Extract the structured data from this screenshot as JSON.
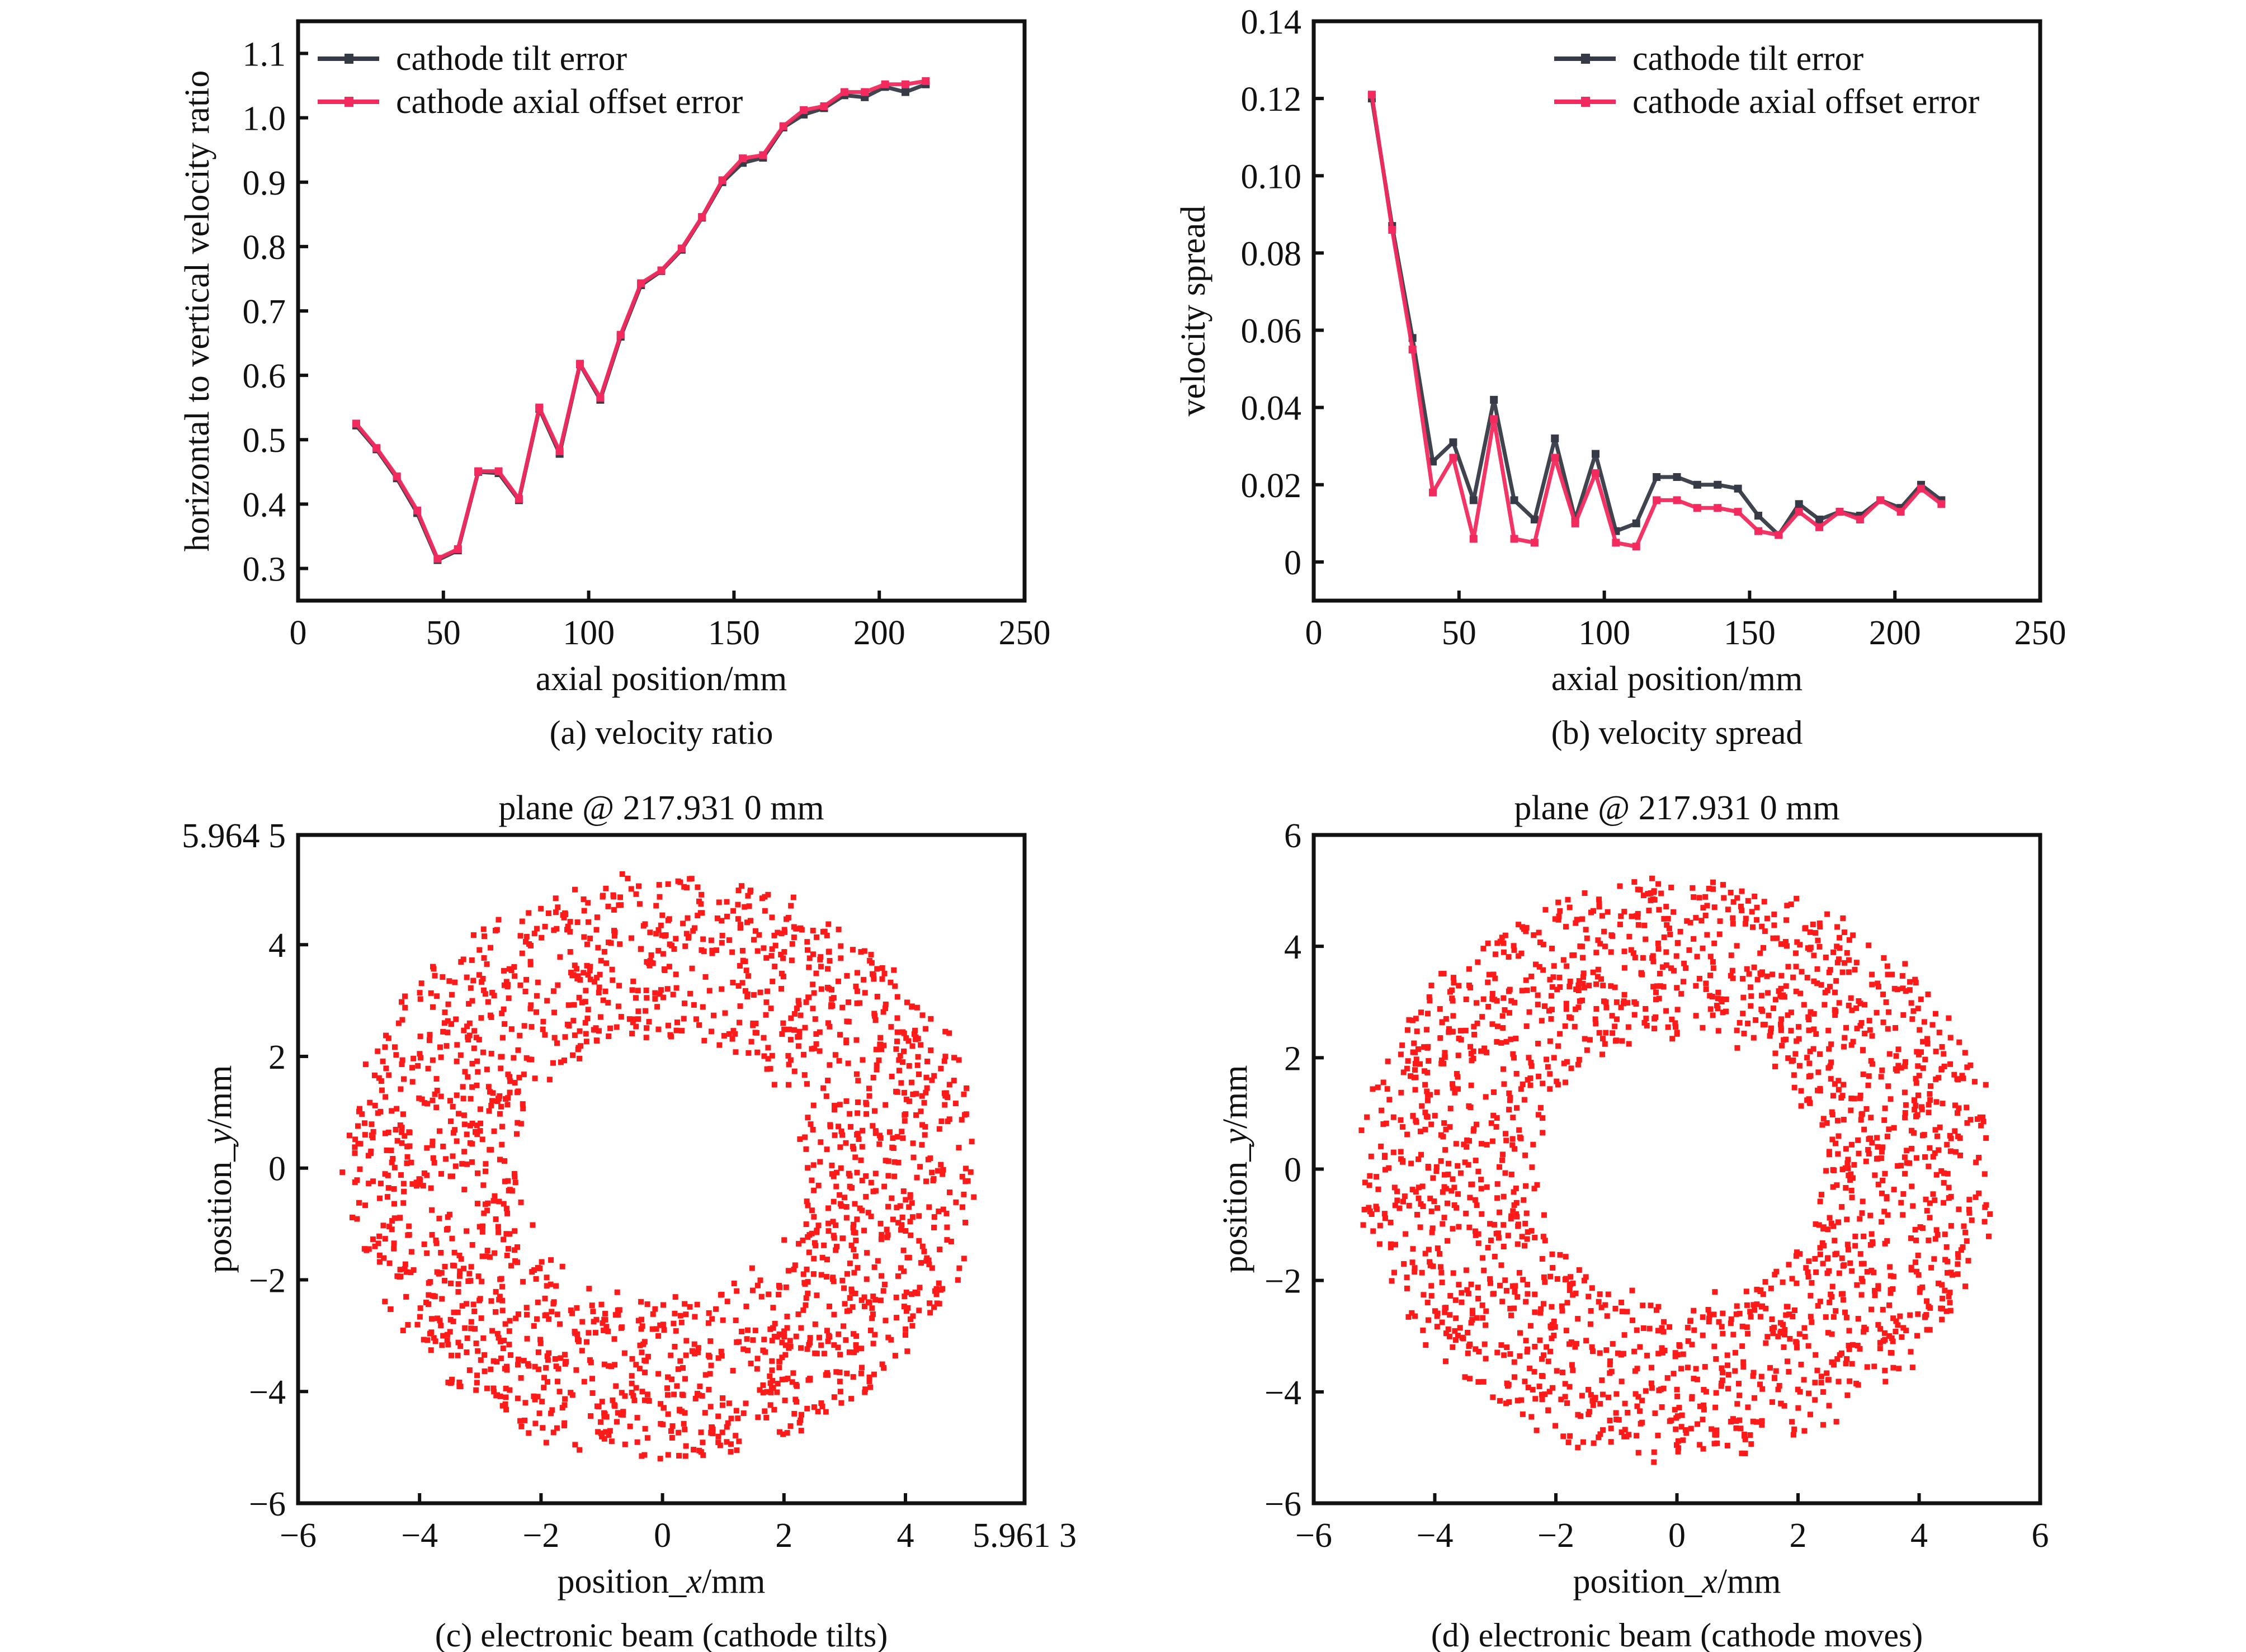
{
  "chart_data": [
    {
      "id": "a",
      "type": "line",
      "caption": "(a) velocity ratio",
      "xlabel": "axial position/mm",
      "ylabel": "horizontal to vertical velocity ratio",
      "xlim": [
        0,
        250
      ],
      "ylim": [
        0.25,
        1.15
      ],
      "xticks": [
        0,
        50,
        100,
        150,
        200,
        250
      ],
      "xtick_labels": [
        "0",
        "50",
        "100",
        "150",
        "200",
        "250"
      ],
      "yticks": [
        0.3,
        0.4,
        0.5,
        0.6,
        0.7,
        0.8,
        0.9,
        1.0,
        1.1
      ],
      "ytick_labels": [
        "0.3",
        "0.4",
        "0.5",
        "0.6",
        "0.7",
        "0.8",
        "0.9",
        "1.0",
        "1.1"
      ],
      "grid": false,
      "legend_position": "top-left",
      "x": [
        20,
        27,
        34,
        41,
        48,
        55,
        62,
        69,
        76,
        83,
        90,
        97,
        104,
        111,
        118,
        125,
        132,
        139,
        146,
        153,
        160,
        167,
        174,
        181,
        188,
        195,
        202,
        209,
        216
      ],
      "series": [
        {
          "name": "cathode tilt error",
          "color": "#353a46",
          "values": [
            0.522,
            0.485,
            0.44,
            0.386,
            0.313,
            0.328,
            0.45,
            0.448,
            0.406,
            0.548,
            0.478,
            0.617,
            0.562,
            0.66,
            0.74,
            0.762,
            0.795,
            0.845,
            0.9,
            0.93,
            0.938,
            0.985,
            1.005,
            1.015,
            1.035,
            1.032,
            1.048,
            1.04,
            1.052
          ]
        },
        {
          "name": "cathode axial offset error",
          "color": "#f22a5e",
          "values": [
            0.525,
            0.487,
            0.443,
            0.39,
            0.315,
            0.33,
            0.451,
            0.451,
            0.408,
            0.55,
            0.482,
            0.618,
            0.565,
            0.663,
            0.743,
            0.763,
            0.797,
            0.846,
            0.903,
            0.937,
            0.942,
            0.987,
            1.012,
            1.018,
            1.04,
            1.04,
            1.052,
            1.052,
            1.057
          ]
        }
      ]
    },
    {
      "id": "b",
      "type": "line",
      "caption": "(b) velocity spread",
      "xlabel": "axial position/mm",
      "ylabel": "velocity spread",
      "xlim": [
        0,
        250
      ],
      "ylim": [
        -0.01,
        0.14
      ],
      "xticks": [
        0,
        50,
        100,
        150,
        200,
        250
      ],
      "xtick_labels": [
        "0",
        "50",
        "100",
        "150",
        "200",
        "250"
      ],
      "yticks": [
        0,
        0.02,
        0.04,
        0.06,
        0.08,
        0.1,
        0.12,
        0.14
      ],
      "ytick_labels": [
        "0",
        "0.02",
        "0.04",
        "0.06",
        "0.08",
        "0.10",
        "0.12",
        "0.14"
      ],
      "grid": false,
      "legend_position": "top-right",
      "x": [
        20,
        27,
        34,
        41,
        48,
        55,
        62,
        69,
        76,
        83,
        90,
        97,
        104,
        111,
        118,
        125,
        132,
        139,
        146,
        153,
        160,
        167,
        174,
        181,
        188,
        195,
        202,
        209,
        216
      ],
      "series": [
        {
          "name": "cathode tilt error",
          "color": "#353a46",
          "values": [
            0.12,
            0.087,
            0.058,
            0.026,
            0.031,
            0.016,
            0.042,
            0.016,
            0.011,
            0.032,
            0.011,
            0.028,
            0.008,
            0.01,
            0.022,
            0.022,
            0.02,
            0.02,
            0.019,
            0.012,
            0.007,
            0.015,
            0.011,
            0.013,
            0.012,
            0.016,
            0.014,
            0.02,
            0.016
          ]
        },
        {
          "name": "cathode axial offset error",
          "color": "#f22a5e",
          "values": [
            0.121,
            0.086,
            0.055,
            0.018,
            0.027,
            0.006,
            0.037,
            0.006,
            0.005,
            0.027,
            0.01,
            0.023,
            0.005,
            0.004,
            0.016,
            0.016,
            0.014,
            0.014,
            0.013,
            0.008,
            0.007,
            0.013,
            0.009,
            0.013,
            0.011,
            0.016,
            0.013,
            0.019,
            0.015
          ]
        }
      ]
    },
    {
      "id": "c",
      "type": "scatter",
      "title": "plane @ 217.931 0 mm",
      "caption": "(c) electronic beam (cathode tilts)",
      "xlabel_prefix": "position_",
      "xlabel_var": "x",
      "xlabel_suffix": "/mm",
      "ylabel_prefix": "position_",
      "ylabel_var": "y",
      "ylabel_suffix": "/mm",
      "xlim": [
        -6,
        5.9613
      ],
      "ylim": [
        -6,
        5.9645
      ],
      "xticks": [
        -6,
        -4,
        -2,
        0,
        2,
        4,
        5.9613
      ],
      "xtick_labels": [
        "−6",
        "−4",
        "−2",
        "0",
        "2",
        "4",
        "5.961 3"
      ],
      "yticks": [
        -6,
        -4,
        -2,
        0,
        2,
        4,
        5.9645
      ],
      "ytick_labels": [
        "−6",
        "−4",
        "−2",
        "0",
        "2",
        "4",
        "5.964 5"
      ],
      "grid": false,
      "point_color": "#ff1a1a",
      "distribution": {
        "shape": "annulus",
        "center": [
          0,
          0
        ],
        "inner_radius": 2.4,
        "outer_radius": 5.2,
        "count": 1900,
        "seed": 7
      }
    },
    {
      "id": "d",
      "type": "scatter",
      "title": "plane @ 217.931 0 mm",
      "caption": "(d) electronic beam (cathode moves)",
      "xlabel_prefix": "position_",
      "xlabel_var": "x",
      "xlabel_suffix": "/mm",
      "ylabel_prefix": "position_",
      "ylabel_var": "y",
      "ylabel_suffix": "/mm",
      "xlim": [
        -6,
        6
      ],
      "ylim": [
        -6,
        6
      ],
      "xticks": [
        -6,
        -4,
        -2,
        0,
        2,
        4,
        6
      ],
      "xtick_labels": [
        "−6",
        "−4",
        "−2",
        "0",
        "2",
        "4",
        "6"
      ],
      "yticks": [
        -6,
        -4,
        -2,
        0,
        2,
        4,
        6
      ],
      "ytick_labels": [
        "−6",
        "−4",
        "−2",
        "0",
        "2",
        "4",
        "6"
      ],
      "grid": false,
      "point_color": "#ff1a1a",
      "distribution": {
        "shape": "annulus",
        "center": [
          0,
          0
        ],
        "inner_radius": 2.4,
        "outer_radius": 5.2,
        "count": 1900,
        "seed": 23
      }
    }
  ]
}
